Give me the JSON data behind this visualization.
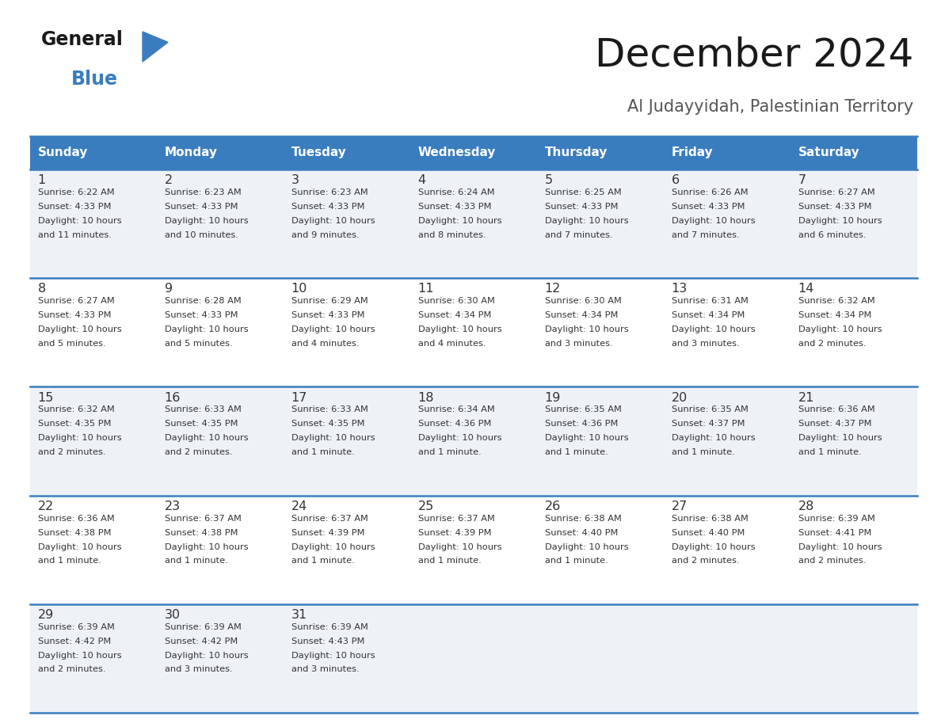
{
  "title": "December 2024",
  "subtitle": "Al Judayyidah, Palestinian Territory",
  "header_color": "#3a7dbf",
  "header_text_color": "#ffffff",
  "cell_bg_odd": "#eef2f7",
  "cell_bg_even": "#ffffff",
  "border_color": "#3a7dbf",
  "text_color": "#333333",
  "days_of_week": [
    "Sunday",
    "Monday",
    "Tuesday",
    "Wednesday",
    "Thursday",
    "Friday",
    "Saturday"
  ],
  "calendar_data": [
    [
      {
        "day": "1",
        "sunrise": "6:22 AM",
        "sunset": "4:33 PM",
        "daylight_h": "10 hours",
        "daylight_m": "and 11 minutes."
      },
      {
        "day": "2",
        "sunrise": "6:23 AM",
        "sunset": "4:33 PM",
        "daylight_h": "10 hours",
        "daylight_m": "and 10 minutes."
      },
      {
        "day": "3",
        "sunrise": "6:23 AM",
        "sunset": "4:33 PM",
        "daylight_h": "10 hours",
        "daylight_m": "and 9 minutes."
      },
      {
        "day": "4",
        "sunrise": "6:24 AM",
        "sunset": "4:33 PM",
        "daylight_h": "10 hours",
        "daylight_m": "and 8 minutes."
      },
      {
        "day": "5",
        "sunrise": "6:25 AM",
        "sunset": "4:33 PM",
        "daylight_h": "10 hours",
        "daylight_m": "and 7 minutes."
      },
      {
        "day": "6",
        "sunrise": "6:26 AM",
        "sunset": "4:33 PM",
        "daylight_h": "10 hours",
        "daylight_m": "and 7 minutes."
      },
      {
        "day": "7",
        "sunrise": "6:27 AM",
        "sunset": "4:33 PM",
        "daylight_h": "10 hours",
        "daylight_m": "and 6 minutes."
      }
    ],
    [
      {
        "day": "8",
        "sunrise": "6:27 AM",
        "sunset": "4:33 PM",
        "daylight_h": "10 hours",
        "daylight_m": "and 5 minutes."
      },
      {
        "day": "9",
        "sunrise": "6:28 AM",
        "sunset": "4:33 PM",
        "daylight_h": "10 hours",
        "daylight_m": "and 5 minutes."
      },
      {
        "day": "10",
        "sunrise": "6:29 AM",
        "sunset": "4:33 PM",
        "daylight_h": "10 hours",
        "daylight_m": "and 4 minutes."
      },
      {
        "day": "11",
        "sunrise": "6:30 AM",
        "sunset": "4:34 PM",
        "daylight_h": "10 hours",
        "daylight_m": "and 4 minutes."
      },
      {
        "day": "12",
        "sunrise": "6:30 AM",
        "sunset": "4:34 PM",
        "daylight_h": "10 hours",
        "daylight_m": "and 3 minutes."
      },
      {
        "day": "13",
        "sunrise": "6:31 AM",
        "sunset": "4:34 PM",
        "daylight_h": "10 hours",
        "daylight_m": "and 3 minutes."
      },
      {
        "day": "14",
        "sunrise": "6:32 AM",
        "sunset": "4:34 PM",
        "daylight_h": "10 hours",
        "daylight_m": "and 2 minutes."
      }
    ],
    [
      {
        "day": "15",
        "sunrise": "6:32 AM",
        "sunset": "4:35 PM",
        "daylight_h": "10 hours",
        "daylight_m": "and 2 minutes."
      },
      {
        "day": "16",
        "sunrise": "6:33 AM",
        "sunset": "4:35 PM",
        "daylight_h": "10 hours",
        "daylight_m": "and 2 minutes."
      },
      {
        "day": "17",
        "sunrise": "6:33 AM",
        "sunset": "4:35 PM",
        "daylight_h": "10 hours",
        "daylight_m": "and 1 minute."
      },
      {
        "day": "18",
        "sunrise": "6:34 AM",
        "sunset": "4:36 PM",
        "daylight_h": "10 hours",
        "daylight_m": "and 1 minute."
      },
      {
        "day": "19",
        "sunrise": "6:35 AM",
        "sunset": "4:36 PM",
        "daylight_h": "10 hours",
        "daylight_m": "and 1 minute."
      },
      {
        "day": "20",
        "sunrise": "6:35 AM",
        "sunset": "4:37 PM",
        "daylight_h": "10 hours",
        "daylight_m": "and 1 minute."
      },
      {
        "day": "21",
        "sunrise": "6:36 AM",
        "sunset": "4:37 PM",
        "daylight_h": "10 hours",
        "daylight_m": "and 1 minute."
      }
    ],
    [
      {
        "day": "22",
        "sunrise": "6:36 AM",
        "sunset": "4:38 PM",
        "daylight_h": "10 hours",
        "daylight_m": "and 1 minute."
      },
      {
        "day": "23",
        "sunrise": "6:37 AM",
        "sunset": "4:38 PM",
        "daylight_h": "10 hours",
        "daylight_m": "and 1 minute."
      },
      {
        "day": "24",
        "sunrise": "6:37 AM",
        "sunset": "4:39 PM",
        "daylight_h": "10 hours",
        "daylight_m": "and 1 minute."
      },
      {
        "day": "25",
        "sunrise": "6:37 AM",
        "sunset": "4:39 PM",
        "daylight_h": "10 hours",
        "daylight_m": "and 1 minute."
      },
      {
        "day": "26",
        "sunrise": "6:38 AM",
        "sunset": "4:40 PM",
        "daylight_h": "10 hours",
        "daylight_m": "and 1 minute."
      },
      {
        "day": "27",
        "sunrise": "6:38 AM",
        "sunset": "4:40 PM",
        "daylight_h": "10 hours",
        "daylight_m": "and 2 minutes."
      },
      {
        "day": "28",
        "sunrise": "6:39 AM",
        "sunset": "4:41 PM",
        "daylight_h": "10 hours",
        "daylight_m": "and 2 minutes."
      }
    ],
    [
      {
        "day": "29",
        "sunrise": "6:39 AM",
        "sunset": "4:42 PM",
        "daylight_h": "10 hours",
        "daylight_m": "and 2 minutes."
      },
      {
        "day": "30",
        "sunrise": "6:39 AM",
        "sunset": "4:42 PM",
        "daylight_h": "10 hours",
        "daylight_m": "and 3 minutes."
      },
      {
        "day": "31",
        "sunrise": "6:39 AM",
        "sunset": "4:43 PM",
        "daylight_h": "10 hours",
        "daylight_m": "and 3 minutes."
      },
      null,
      null,
      null,
      null
    ]
  ],
  "logo_general_color": "#1a1a1a",
  "logo_blue_color": "#3a7dbf",
  "logo_triangle_color": "#3a7dbf",
  "fig_width": 11.88,
  "fig_height": 9.18,
  "dpi": 100
}
